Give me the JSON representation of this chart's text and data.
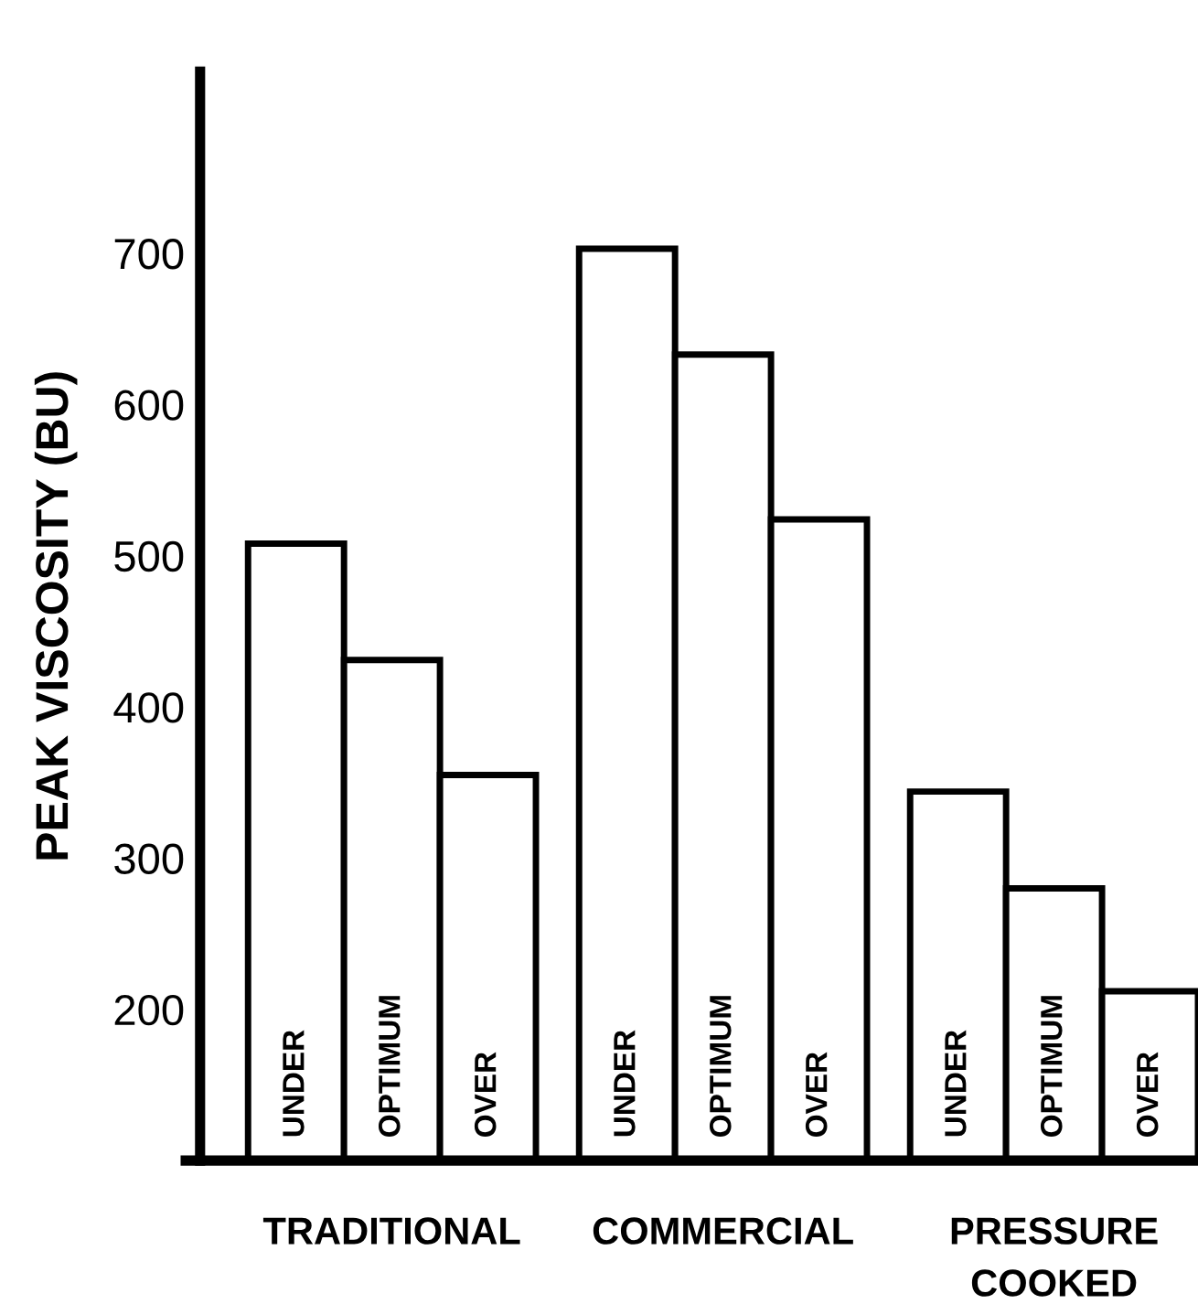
{
  "chart_data": {
    "type": "bar",
    "ylabel": "PEAK VISCOSITY (BU)",
    "categories": [
      "UNDER",
      "OPTIMUM",
      "OVER",
      "UNDER",
      "OPTIMUM",
      "OVER",
      "UNDER",
      "OPTIMUM",
      "OVER"
    ],
    "values": [
      508,
      431,
      355,
      703,
      633,
      524,
      344,
      280,
      212
    ],
    "color": "#ffffff",
    "annotations": [
      "TRADITIONAL",
      "COMMERCIAL",
      "PRESSURE\nCOOKED"
    ],
    "ylim": [
      100,
      820
    ],
    "yticks": [
      200,
      300,
      400,
      500,
      600,
      700
    ],
    "grid": false,
    "legend": false
  }
}
